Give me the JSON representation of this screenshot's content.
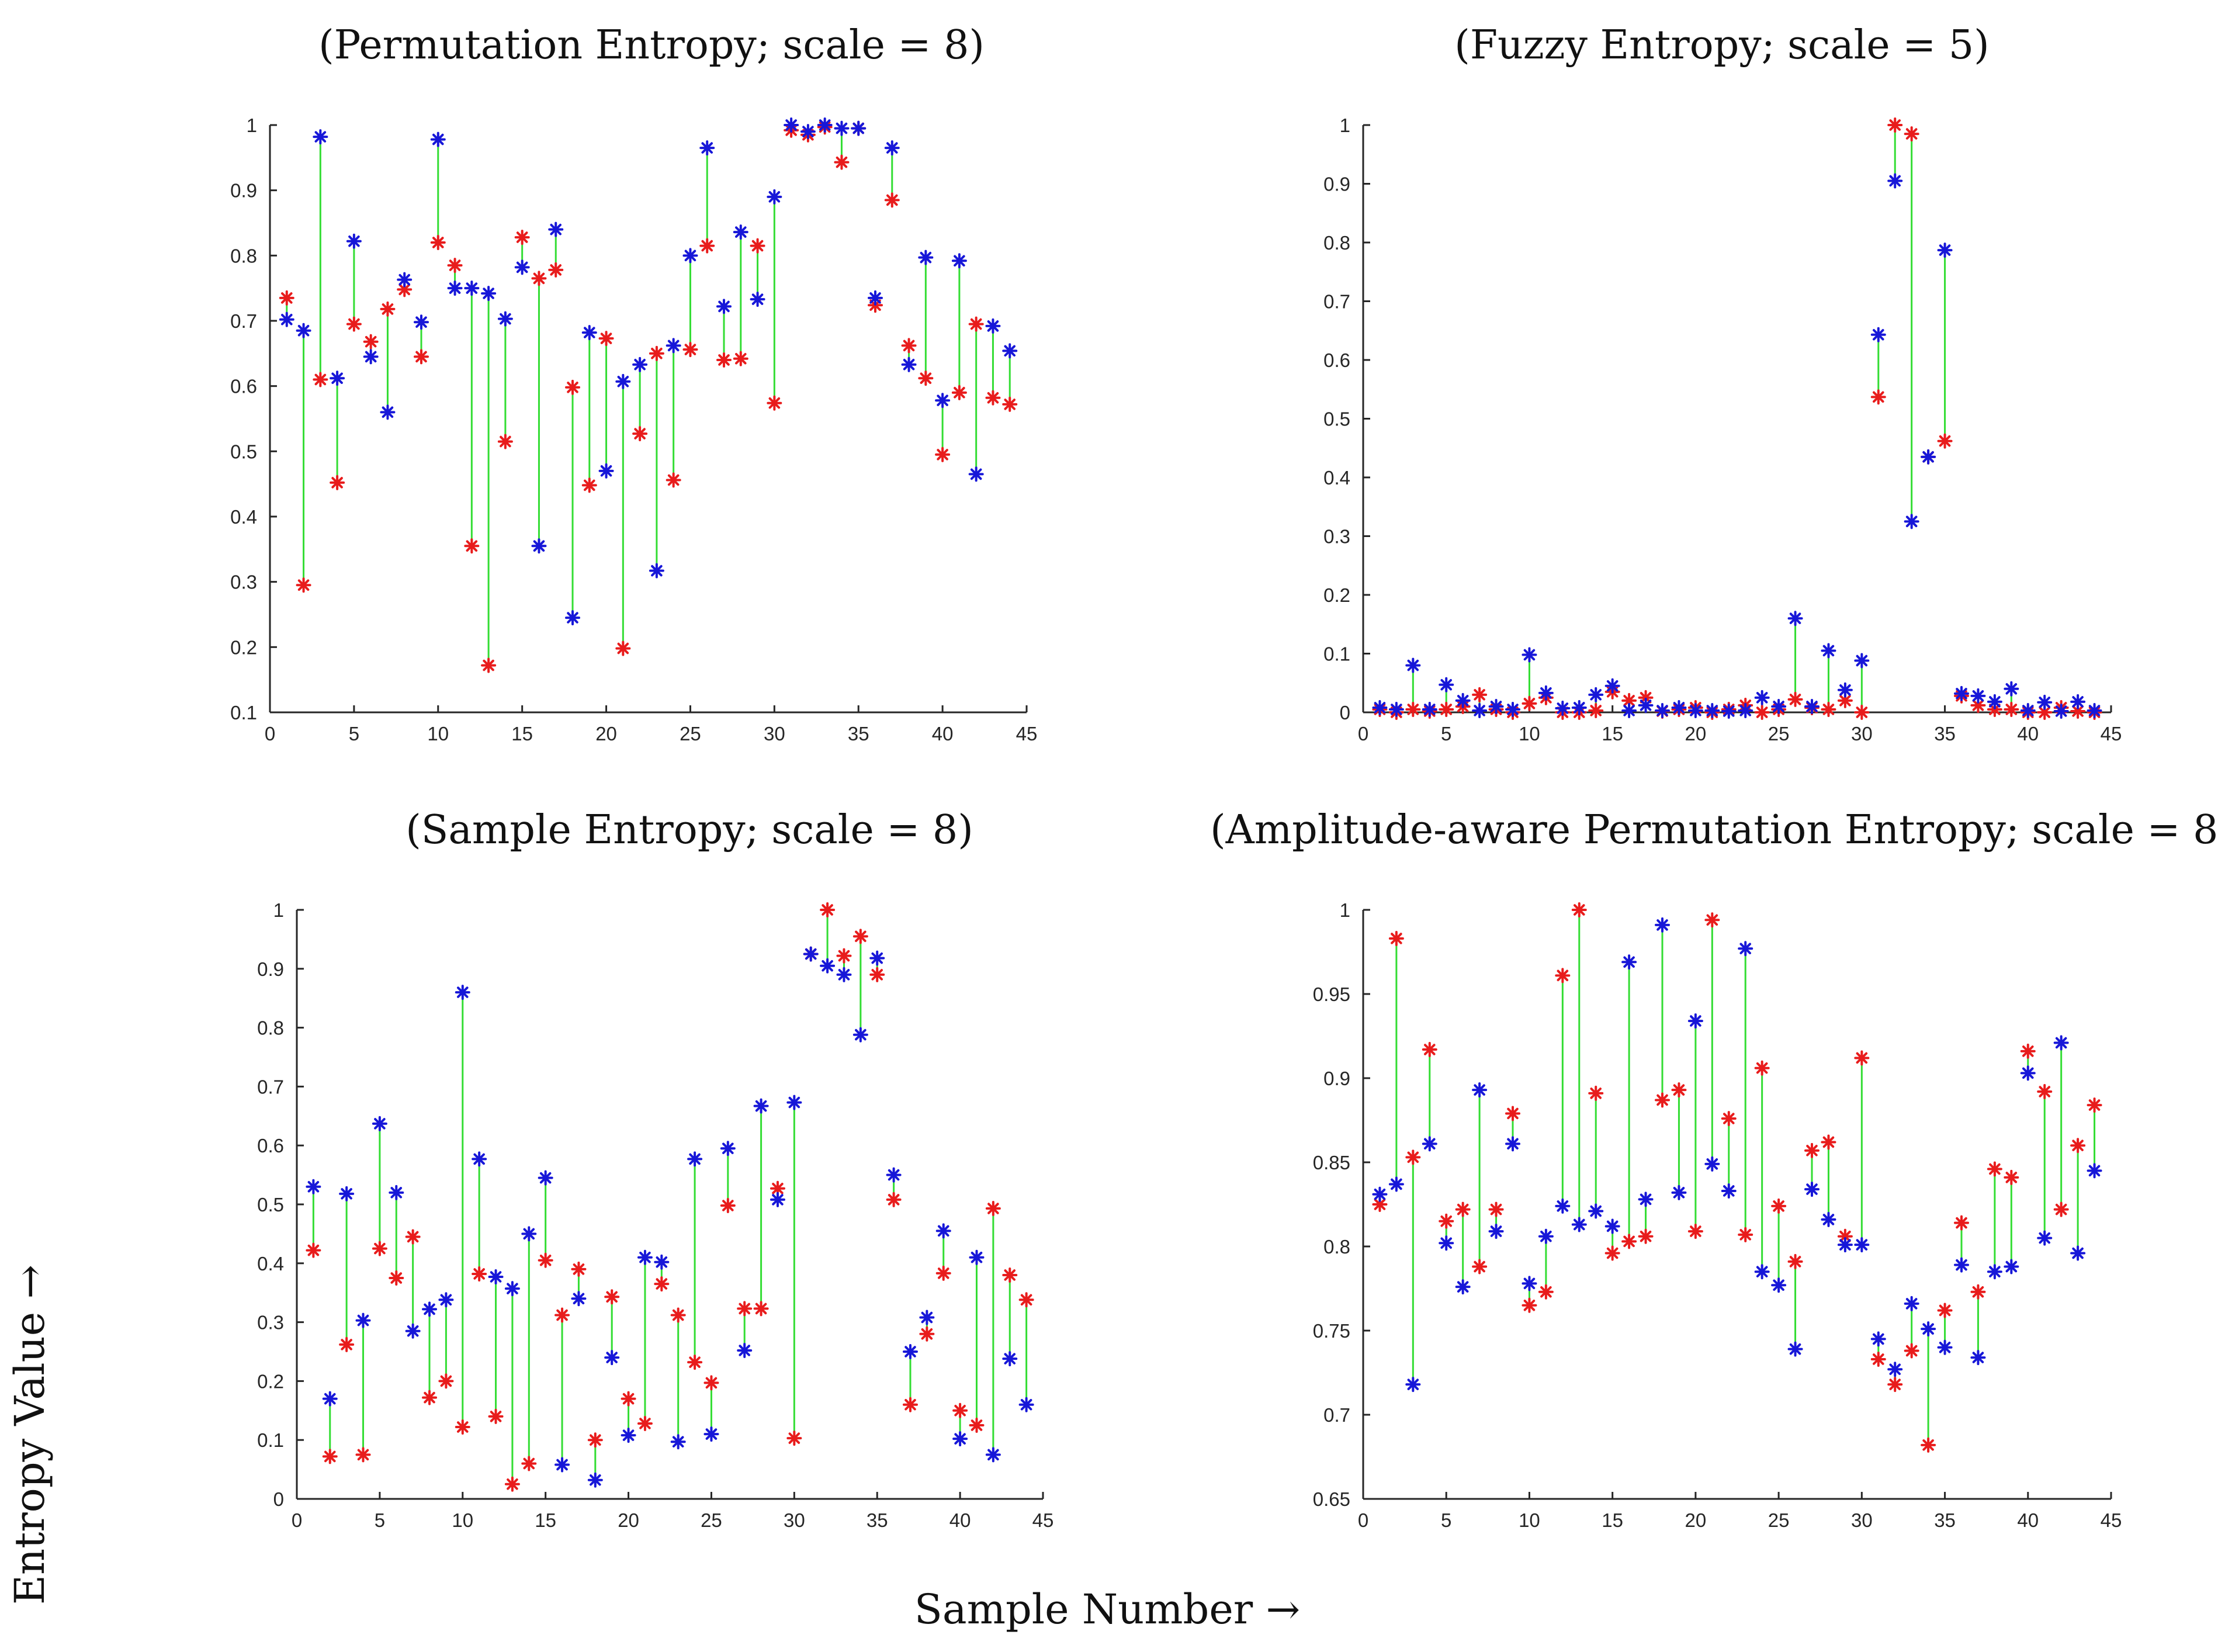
{
  "xlabel": "Sample Number →",
  "ylabel": "Entropy Value →",
  "colors": {
    "series_a": "#e81c1c",
    "series_b": "#1717d8",
    "connector": "#33dd33",
    "axis": "#262626"
  },
  "chart_data": [
    {
      "type": "scatter",
      "title": "(Permutation Entropy; scale = 8)",
      "xlim": [
        0,
        45
      ],
      "ylim": [
        0.1,
        1
      ],
      "xticks": [
        0,
        5,
        10,
        15,
        20,
        25,
        30,
        35,
        40,
        45
      ],
      "yticks": [
        0.1,
        0.2,
        0.3,
        0.4,
        0.5,
        0.6,
        0.7,
        0.8,
        0.9,
        1
      ],
      "x": [
        1,
        2,
        3,
        4,
        5,
        6,
        7,
        8,
        9,
        10,
        11,
        12,
        13,
        14,
        15,
        16,
        17,
        18,
        19,
        20,
        21,
        22,
        23,
        24,
        25,
        26,
        27,
        28,
        29,
        30,
        31,
        32,
        33,
        34,
        35,
        36,
        37,
        38,
        39,
        40,
        41,
        42,
        43,
        44
      ],
      "series": [
        {
          "name": "red",
          "values": [
            0.735,
            0.295,
            0.61,
            0.452,
            0.695,
            0.668,
            0.718,
            0.748,
            0.645,
            0.82,
            0.785,
            0.355,
            0.172,
            0.515,
            0.828,
            0.765,
            0.778,
            0.598,
            0.448,
            0.673,
            0.198,
            0.527,
            0.65,
            0.456,
            0.656,
            0.815,
            0.64,
            0.642,
            0.815,
            0.574,
            0.992,
            0.985,
            0.997,
            0.943,
            0.995,
            0.724,
            0.885,
            0.662,
            0.612,
            0.495,
            0.59,
            0.695,
            0.582,
            0.572
          ]
        },
        {
          "name": "blue",
          "values": [
            0.702,
            0.685,
            0.982,
            0.612,
            0.822,
            0.645,
            0.56,
            0.763,
            0.698,
            0.978,
            0.75,
            0.75,
            0.742,
            0.703,
            0.782,
            0.355,
            0.84,
            0.245,
            0.682,
            0.47,
            0.607,
            0.633,
            0.317,
            0.662,
            0.8,
            0.965,
            0.722,
            0.836,
            0.733,
            0.89,
            1.0,
            0.99,
            1.0,
            0.995,
            0.995,
            0.735,
            0.965,
            0.633,
            0.797,
            0.578,
            0.792,
            0.465,
            0.692,
            0.654
          ]
        }
      ]
    },
    {
      "type": "scatter",
      "title": "(Fuzzy Entropy; scale = 5)",
      "xlim": [
        0,
        45
      ],
      "ylim": [
        0,
        1
      ],
      "xticks": [
        0,
        5,
        10,
        15,
        20,
        25,
        30,
        35,
        40,
        45
      ],
      "yticks": [
        0,
        0.1,
        0.2,
        0.3,
        0.4,
        0.5,
        0.6,
        0.7,
        0.8,
        0.9,
        1
      ],
      "x": [
        1,
        2,
        3,
        4,
        5,
        6,
        7,
        8,
        9,
        10,
        11,
        12,
        13,
        14,
        15,
        16,
        17,
        18,
        19,
        20,
        21,
        22,
        23,
        24,
        25,
        26,
        27,
        28,
        29,
        30,
        31,
        32,
        33,
        34,
        35,
        36,
        37,
        38,
        39,
        40,
        41,
        42,
        43,
        44
      ],
      "series": [
        {
          "name": "red",
          "values": [
            0.005,
            0.0,
            0.005,
            0.002,
            0.005,
            0.01,
            0.03,
            0.005,
            0.0,
            0.015,
            0.025,
            0.0,
            0.0,
            0.003,
            0.035,
            0.02,
            0.025,
            0.002,
            0.005,
            0.008,
            0.0,
            0.005,
            0.012,
            0.0,
            0.005,
            0.022,
            0.008,
            0.005,
            0.02,
            0.0,
            0.537,
            1.0,
            0.985,
            0.435,
            0.462,
            0.028,
            0.012,
            0.005,
            0.005,
            0.0,
            0.0,
            0.008,
            0.002,
            0.0
          ]
        },
        {
          "name": "blue",
          "values": [
            0.008,
            0.005,
            0.08,
            0.005,
            0.047,
            0.02,
            0.003,
            0.01,
            0.005,
            0.098,
            0.033,
            0.007,
            0.008,
            0.03,
            0.045,
            0.003,
            0.012,
            0.003,
            0.008,
            0.003,
            0.003,
            0.002,
            0.003,
            0.025,
            0.01,
            0.16,
            0.01,
            0.105,
            0.038,
            0.088,
            0.643,
            0.905,
            0.325,
            0.435,
            0.787,
            0.032,
            0.028,
            0.018,
            0.04,
            0.003,
            0.017,
            0.002,
            0.018,
            0.003
          ]
        }
      ]
    },
    {
      "type": "scatter",
      "title": "(Sample Entropy; scale = 8)",
      "xlim": [
        0,
        45
      ],
      "ylim": [
        0,
        1
      ],
      "xticks": [
        0,
        5,
        10,
        15,
        20,
        25,
        30,
        35,
        40,
        45
      ],
      "yticks": [
        0,
        0.1,
        0.2,
        0.3,
        0.4,
        0.5,
        0.6,
        0.7,
        0.8,
        0.9,
        1
      ],
      "x": [
        1,
        2,
        3,
        4,
        5,
        6,
        7,
        8,
        9,
        10,
        11,
        12,
        13,
        14,
        15,
        16,
        17,
        18,
        19,
        20,
        21,
        22,
        23,
        24,
        25,
        26,
        27,
        28,
        29,
        30,
        31,
        32,
        33,
        34,
        35,
        36,
        37,
        38,
        39,
        40,
        41,
        42,
        43,
        44
      ],
      "series": [
        {
          "name": "red",
          "values": [
            0.422,
            0.072,
            0.262,
            0.075,
            0.425,
            0.375,
            0.445,
            0.172,
            0.2,
            0.122,
            0.382,
            0.14,
            0.025,
            0.06,
            0.405,
            0.312,
            0.39,
            0.1,
            0.343,
            0.17,
            0.128,
            0.365,
            0.312,
            0.232,
            0.197,
            0.498,
            0.323,
            0.323,
            0.527,
            0.103,
            0.925,
            1.0,
            0.922,
            0.955,
            0.89,
            0.508,
            0.16,
            0.28,
            0.383,
            0.15,
            0.125,
            0.493,
            0.38,
            0.338
          ]
        },
        {
          "name": "blue",
          "values": [
            0.53,
            0.17,
            0.518,
            0.303,
            0.637,
            0.52,
            0.285,
            0.322,
            0.338,
            0.86,
            0.577,
            0.377,
            0.357,
            0.45,
            0.545,
            0.058,
            0.34,
            0.032,
            0.24,
            0.108,
            0.41,
            0.402,
            0.097,
            0.577,
            0.11,
            0.595,
            0.252,
            0.667,
            0.508,
            0.673,
            0.925,
            0.905,
            0.89,
            0.788,
            0.918,
            0.55,
            0.25,
            0.308,
            0.455,
            0.102,
            0.41,
            0.075,
            0.238,
            0.16
          ]
        }
      ]
    },
    {
      "type": "scatter",
      "title": "(Amplitude-aware Permutation Entropy; scale = 8)",
      "xlim": [
        0,
        45
      ],
      "ylim": [
        0.65,
        1
      ],
      "xticks": [
        0,
        5,
        10,
        15,
        20,
        25,
        30,
        35,
        40,
        45
      ],
      "yticks": [
        0.65,
        0.7,
        0.75,
        0.8,
        0.85,
        0.9,
        0.95,
        1
      ],
      "x": [
        1,
        2,
        3,
        4,
        5,
        6,
        7,
        8,
        9,
        10,
        11,
        12,
        13,
        14,
        15,
        16,
        17,
        18,
        19,
        20,
        21,
        22,
        23,
        24,
        25,
        26,
        27,
        28,
        29,
        30,
        31,
        32,
        33,
        34,
        35,
        36,
        37,
        38,
        39,
        40,
        41,
        42,
        43,
        44
      ],
      "series": [
        {
          "name": "red",
          "values": [
            0.825,
            0.983,
            0.853,
            0.917,
            0.815,
            0.822,
            0.788,
            0.822,
            0.879,
            0.765,
            0.773,
            0.961,
            1.0,
            0.891,
            0.796,
            0.803,
            0.806,
            0.887,
            0.893,
            0.809,
            0.994,
            0.876,
            0.807,
            0.906,
            0.824,
            0.791,
            0.857,
            0.862,
            0.806,
            0.912,
            0.733,
            0.718,
            0.738,
            0.682,
            0.762,
            0.814,
            0.773,
            0.846,
            0.841,
            0.916,
            0.892,
            0.822,
            0.86,
            0.884
          ]
        },
        {
          "name": "blue",
          "values": [
            0.831,
            0.837,
            0.718,
            0.861,
            0.802,
            0.776,
            0.893,
            0.809,
            0.861,
            0.778,
            0.806,
            0.824,
            0.813,
            0.821,
            0.812,
            0.969,
            0.828,
            0.991,
            0.832,
            0.934,
            0.849,
            0.833,
            0.977,
            0.785,
            0.777,
            0.739,
            0.834,
            0.816,
            0.801,
            0.801,
            0.745,
            0.727,
            0.766,
            0.751,
            0.74,
            0.789,
            0.734,
            0.785,
            0.788,
            0.903,
            0.805,
            0.921,
            0.796,
            0.845
          ]
        }
      ]
    }
  ]
}
